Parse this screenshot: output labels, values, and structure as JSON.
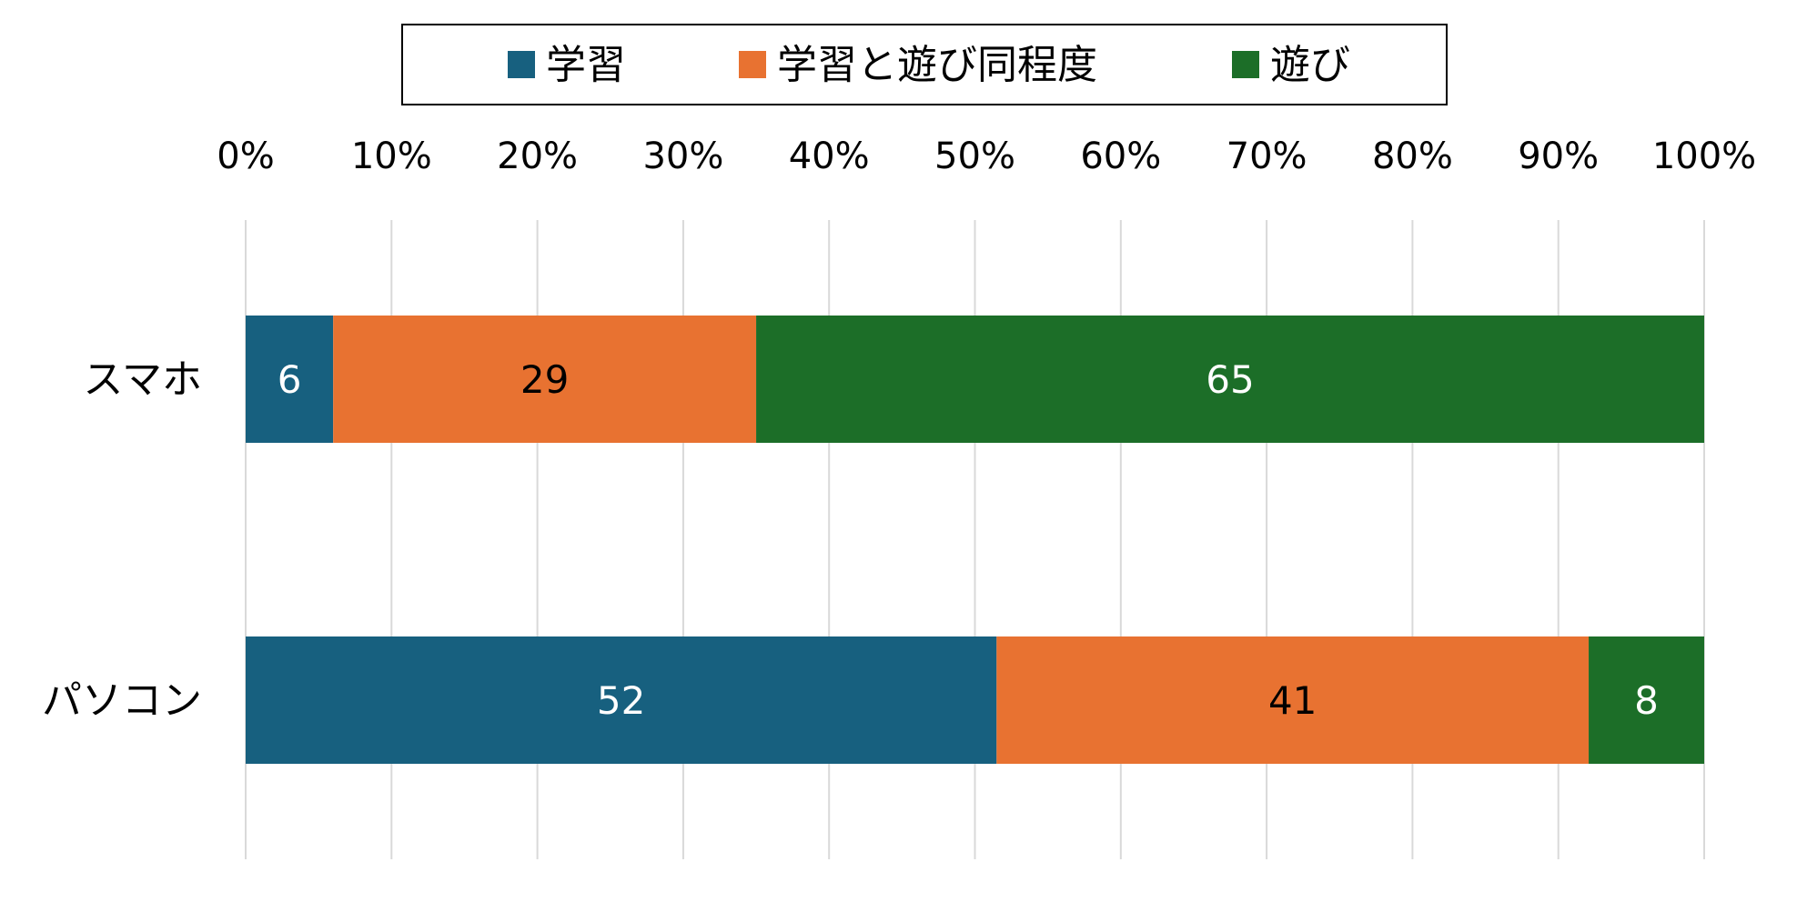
{
  "chart_data": {
    "type": "bar",
    "orientation": "horizontal",
    "stacked": true,
    "percent_stacked": true,
    "categories": [
      "スマホ",
      "パソコン"
    ],
    "series": [
      {
        "name": "学習",
        "values": [
          6,
          52
        ],
        "color": "#17607f",
        "label_color": "#ffffff"
      },
      {
        "name": "学習と遊び同程度",
        "values": [
          29,
          41
        ],
        "color": "#e87231",
        "label_color": "#000000"
      },
      {
        "name": "遊び",
        "values": [
          65,
          8
        ],
        "color": "#1c6e28",
        "label_color": "#ffffff"
      }
    ],
    "x_ticks": [
      "0%",
      "10%",
      "20%",
      "30%",
      "40%",
      "50%",
      "60%",
      "70%",
      "80%",
      "90%",
      "100%"
    ],
    "xlim": [
      0,
      100
    ],
    "axis_position": "top",
    "grid": true,
    "legend": "top-center"
  }
}
